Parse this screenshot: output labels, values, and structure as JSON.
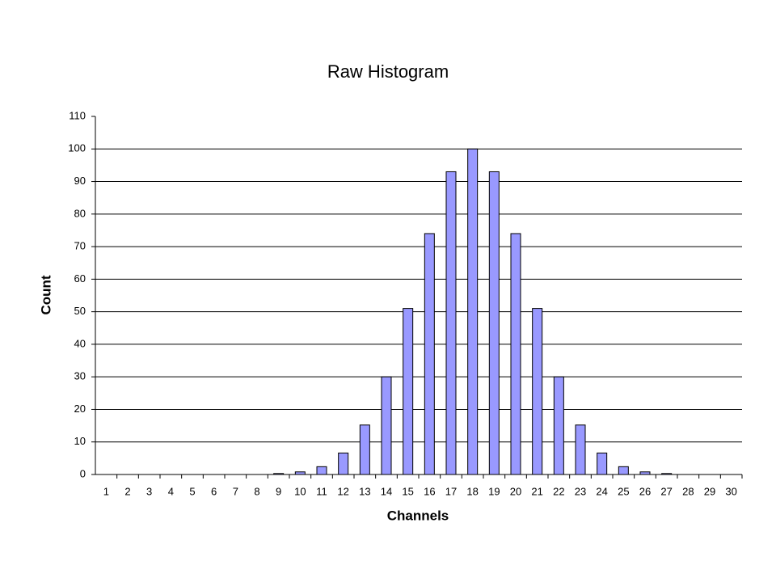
{
  "chart_data": {
    "type": "bar",
    "title": "Raw Histogram",
    "x_label": "Channels",
    "y_label": "Count",
    "categories": [
      "1",
      "2",
      "3",
      "4",
      "5",
      "6",
      "7",
      "8",
      "9",
      "10",
      "11",
      "12",
      "13",
      "14",
      "15",
      "16",
      "17",
      "18",
      "19",
      "20",
      "21",
      "22",
      "23",
      "24",
      "25",
      "26",
      "27",
      "28",
      "29",
      "30"
    ],
    "values": [
      0,
      0,
      0,
      0,
      0,
      0,
      0,
      0,
      0.3,
      0.8,
      2.4,
      6.6,
      15.2,
      30,
      51,
      74,
      93,
      100,
      93,
      74,
      51,
      30,
      15.2,
      6.6,
      2.4,
      0.8,
      0.3,
      0,
      0,
      0
    ],
    "color": "#9999ff",
    "ylim": [
      0,
      110
    ],
    "yticks": [
      0,
      10,
      20,
      30,
      40,
      50,
      60,
      70,
      80,
      90,
      100,
      110
    ],
    "grid": true
  }
}
